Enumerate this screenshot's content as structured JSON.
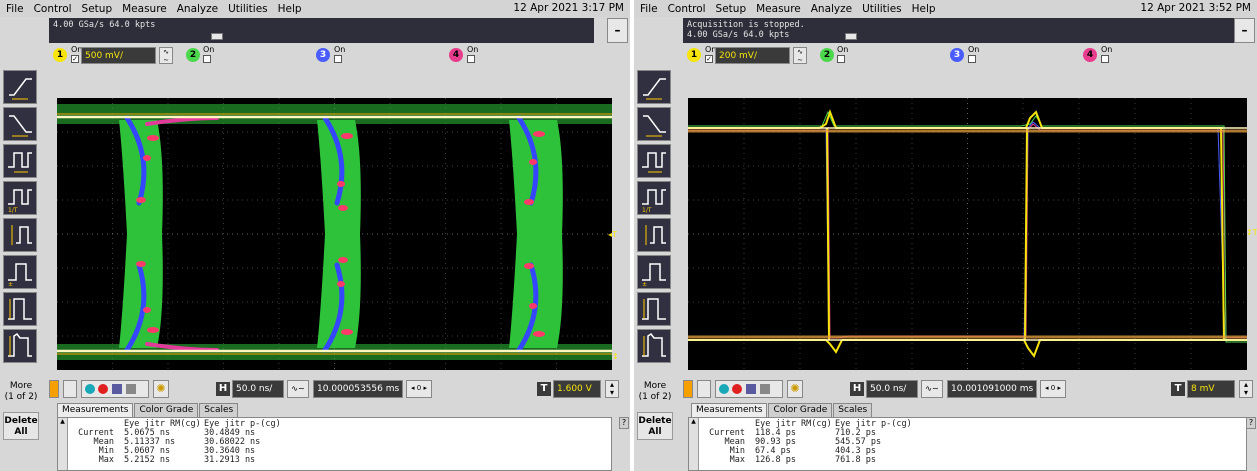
{
  "menu": [
    "File",
    "Control",
    "Setup",
    "Measure",
    "Analyze",
    "Utilities",
    "Help"
  ],
  "scopes": [
    {
      "datetime": "12 Apr 2021 3:17 PM",
      "status_lines": [
        "",
        "4.00 GSa/s   64.0 kpts"
      ],
      "channels": {
        "on_label": "On",
        "ch1_scale": "500 mV/"
      },
      "timebase": "50.0 ns/",
      "position": "10.000053556 ms",
      "trigger_level": "1.600 V",
      "more": "More\n(1 of 2)",
      "delete": "Delete\nAll",
      "tabs": [
        "Measurements",
        "Color Grade",
        "Scales"
      ],
      "meas_headers": [
        "Eye jitr RM(cg)",
        "Eye jitr p-(cg)"
      ],
      "meas_rows": [
        {
          "label": "Current",
          "v1": "5.0675 ns",
          "v2": "30.4849 ns"
        },
        {
          "label": "Mean",
          "v1": "5.11337 ns",
          "v2": "30.68022 ns"
        },
        {
          "label": "Min",
          "v1": "5.0607 ns",
          "v2": "30.3640 ns"
        },
        {
          "label": "Max",
          "v1": "5.2152 ns",
          "v2": "31.2913 ns"
        }
      ]
    },
    {
      "datetime": "12 Apr 2021 3:52 PM",
      "status_lines": [
        "Acquisition is stopped.",
        "4.00 GSa/s   64.0 kpts"
      ],
      "channels": {
        "on_label": "On",
        "ch1_scale": "200 mV/"
      },
      "timebase": "50.0 ns/",
      "position": "10.001091000 ms",
      "trigger_level": "8 mV",
      "more": "More\n(1 of 2)",
      "delete": "Delete\nAll",
      "tabs": [
        "Measurements",
        "Color Grade",
        "Scales"
      ],
      "meas_headers": [
        "Eye jitr RM(cg)",
        "Eye jitr p-(cg)"
      ],
      "meas_rows": [
        {
          "label": "Current",
          "v1": "118.4 ps",
          "v2": "710.2 ps"
        },
        {
          "label": "Mean",
          "v1": "90.93 ps",
          "v2": "545.57 ps"
        },
        {
          "label": "Min",
          "v1": "67.4 ps",
          "v2": "404.3 ps"
        },
        {
          "label": "Max",
          "v1": "126.8 ps",
          "v2": "761.8 ps"
        }
      ]
    }
  ],
  "colors": {
    "ch1": "#f6e40a",
    "ch2": "#4cd84c",
    "ch3": "#4a5cff",
    "ch4": "#e83c8c"
  }
}
